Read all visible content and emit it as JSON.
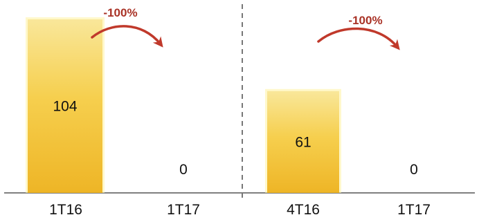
{
  "chart_data": [
    {
      "type": "bar",
      "categories": [
        "1T16",
        "1T17"
      ],
      "values": [
        104,
        0
      ],
      "value_labels": [
        "104",
        "0"
      ],
      "ylim": [
        0,
        110
      ],
      "change_label": "-100%"
    },
    {
      "type": "bar",
      "categories": [
        "4T16",
        "1T17"
      ],
      "values": [
        61,
        0
      ],
      "value_labels": [
        "61",
        "0"
      ],
      "ylim": [
        0,
        110
      ],
      "change_label": "-100%"
    }
  ],
  "colors": {
    "bar_top": "#f9e79a",
    "bar_mid": "#f6cf4e",
    "bar_bottom": "#eeb526",
    "bar_glow": "#fff3a8",
    "arrow": "#c0392b",
    "change_text": "#a93226",
    "axis": "#333333",
    "divider": "#777777"
  }
}
